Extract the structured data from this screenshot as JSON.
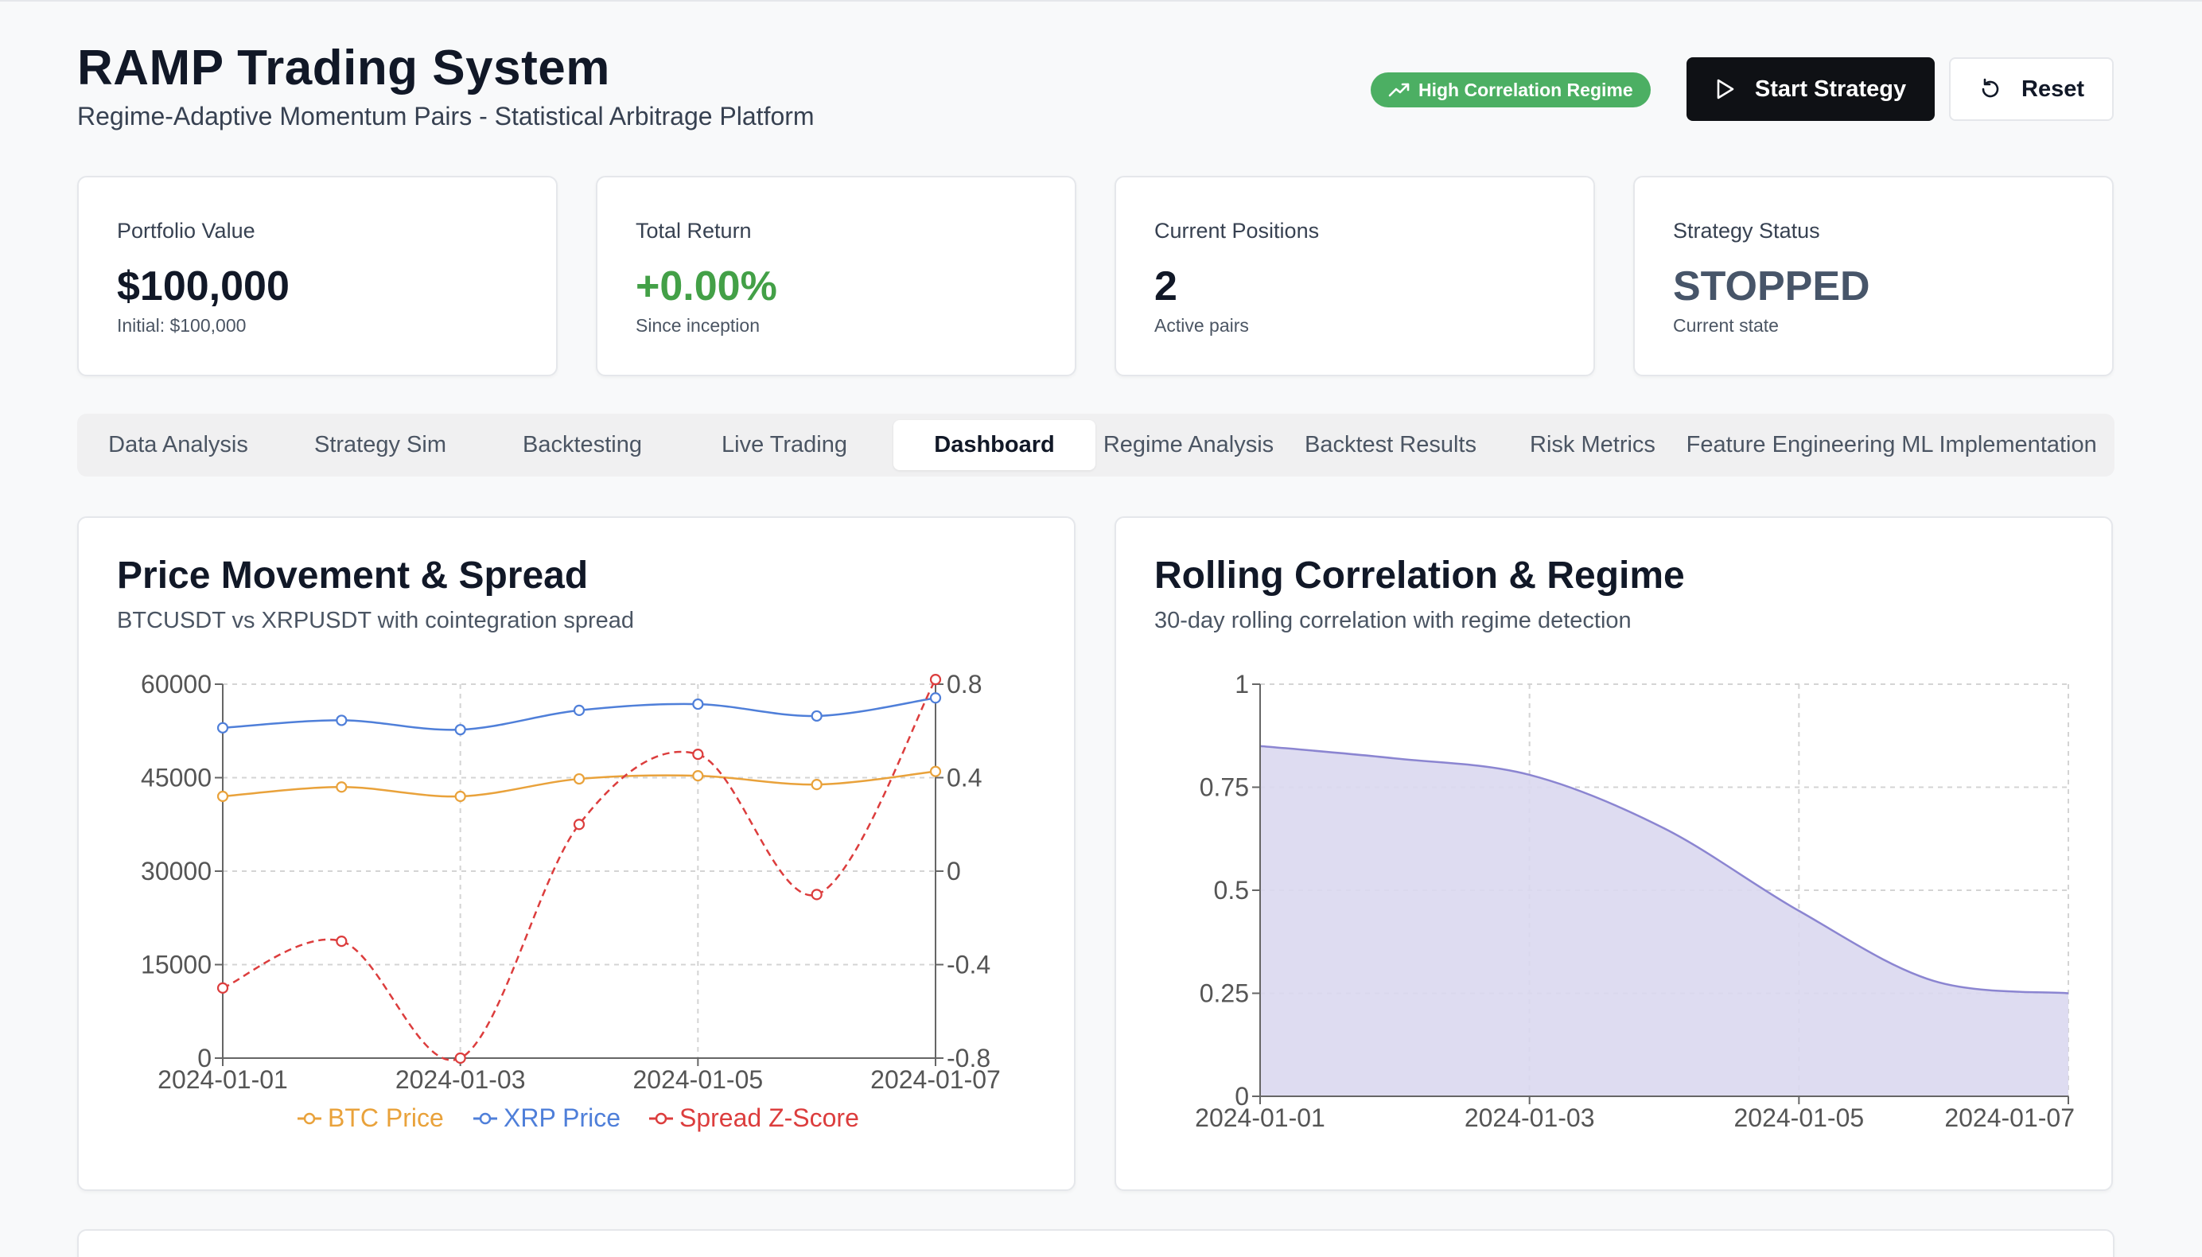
{
  "header": {
    "title": "RAMP Trading System",
    "subtitle": "Regime-Adaptive Momentum Pairs - Statistical Arbitrage Platform",
    "regime_badge": "High Correlation Regime",
    "start_label": "Start Strategy",
    "reset_label": "Reset"
  },
  "stats": [
    {
      "label": "Portfolio Value",
      "value": "$100,000",
      "sub": "Initial: $100,000"
    },
    {
      "label": "Total Return",
      "value": "+0.00%",
      "sub": "Since inception"
    },
    {
      "label": "Current Positions",
      "value": "2",
      "sub": "Active pairs"
    },
    {
      "label": "Strategy Status",
      "value": "STOPPED",
      "sub": "Current state"
    }
  ],
  "tabs": [
    {
      "label": "Data Analysis"
    },
    {
      "label": "Strategy Sim"
    },
    {
      "label": "Backtesting"
    },
    {
      "label": "Live Trading"
    },
    {
      "label": "Dashboard"
    },
    {
      "label": "Regime Analysis"
    },
    {
      "label": "Backtest Results"
    },
    {
      "label": "Risk Metrics"
    },
    {
      "label": "Feature Engineering"
    },
    {
      "label": "ML Implementation"
    }
  ],
  "active_tab": "Dashboard",
  "colors": {
    "btc": "#e9a23b",
    "xrp": "#4f7fd9",
    "spread": "#dc3d3d",
    "corr_fill": "#dad8f0",
    "corr_line": "#8b85d1",
    "badge": "#4caf63"
  },
  "chart_data": [
    {
      "type": "line",
      "title": "Price Movement & Spread",
      "subtitle": "BTCUSDT vs XRPUSDT with cointegration spread",
      "x": [
        "2024-01-01",
        "2024-01-02",
        "2024-01-03",
        "2024-01-04",
        "2024-01-05",
        "2024-01-06",
        "2024-01-07"
      ],
      "x_tick_labels": [
        "2024-01-01",
        "2024-01-03",
        "2024-01-05",
        "2024-01-07"
      ],
      "y_left_ticks": [
        "0",
        "15000",
        "30000",
        "45000",
        "60000"
      ],
      "y_right_ticks": [
        "-0.8",
        "-0.4",
        "0",
        "0.4",
        "0.8"
      ],
      "ylim_left": [
        0,
        60000
      ],
      "ylim_right": [
        -0.8,
        0.8
      ],
      "series": [
        {
          "name": "BTC Price",
          "axis": "left",
          "values": [
            42000,
            43500,
            42000,
            44800,
            45300,
            43900,
            46000
          ]
        },
        {
          "name": "XRP Price",
          "axis": "left",
          "values": [
            53000,
            54200,
            52700,
            55800,
            56800,
            54900,
            57800
          ]
        },
        {
          "name": "Spread Z-Score",
          "axis": "right",
          "values": [
            -0.5,
            -0.3,
            -0.8,
            0.2,
            0.5,
            -0.1,
            0.82
          ]
        }
      ]
    },
    {
      "type": "area",
      "title": "Rolling Correlation & Regime",
      "subtitle": "30-day rolling correlation with regime detection",
      "x": [
        "2024-01-01",
        "2024-01-02",
        "2024-01-03",
        "2024-01-04",
        "2024-01-05",
        "2024-01-06",
        "2024-01-07"
      ],
      "x_tick_labels": [
        "2024-01-01",
        "2024-01-03",
        "2024-01-05",
        "2024-01-07"
      ],
      "y_ticks": [
        "0",
        "0.25",
        "0.5",
        "0.75",
        "1"
      ],
      "ylim": [
        0,
        1
      ],
      "values": [
        0.85,
        0.82,
        0.78,
        0.65,
        0.45,
        0.28,
        0.25
      ]
    }
  ]
}
